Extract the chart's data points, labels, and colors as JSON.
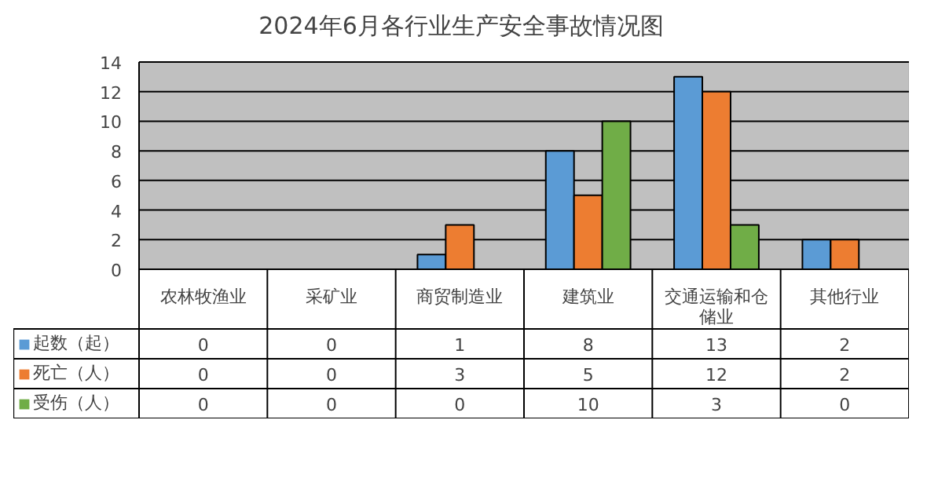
{
  "chart_data": {
    "type": "bar",
    "title": "2024年6月各行业生产安全事故情况图",
    "categories": [
      "农林牧渔业",
      "采矿业",
      "商贸制造业",
      "建筑业",
      "交通运输和仓储业",
      "其他行业"
    ],
    "series": [
      {
        "name": "起数（起）",
        "color": "#5b9bd5",
        "values": [
          0,
          0,
          1,
          8,
          13,
          2
        ]
      },
      {
        "name": "死亡（人）",
        "color": "#ed7d31",
        "values": [
          0,
          0,
          3,
          5,
          12,
          2
        ]
      },
      {
        "name": "受伤（人）",
        "color": "#70ad47",
        "values": [
          0,
          0,
          0,
          10,
          3,
          0
        ]
      }
    ],
    "ylim": [
      0,
      14
    ],
    "yticks": [
      0,
      2,
      4,
      6,
      8,
      10,
      12,
      14
    ],
    "grid": "y",
    "legend": "bottom",
    "data_labels": true
  }
}
